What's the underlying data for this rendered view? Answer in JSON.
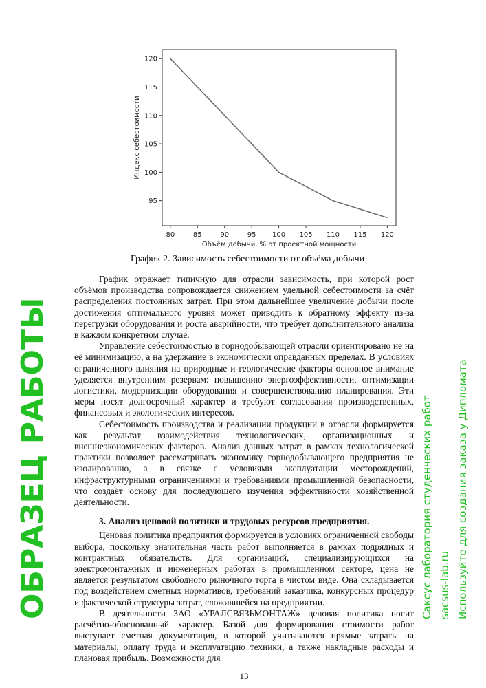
{
  "chart_data": {
    "type": "line",
    "title": "",
    "xlabel": "Объём добычи, % от проектной мощности",
    "ylabel": "Индекс себестоимости",
    "x": [
      80,
      85,
      90,
      95,
      100,
      110,
      120
    ],
    "series": [
      {
        "values": [
          120,
          115,
          110,
          105,
          100,
          95,
          92
        ],
        "color": "#666666"
      }
    ],
    "xticks": [
      80,
      85,
      90,
      95,
      100,
      105,
      110,
      115,
      120
    ],
    "yticks": [
      95,
      100,
      105,
      110,
      115,
      120
    ],
    "xlim": [
      78.5,
      121.6
    ],
    "ylim": [
      90.6,
      121.6
    ],
    "grid": false
  },
  "caption": "График 2. Зависимость себестоимости от объёма добычи",
  "paragraphs": [
    "График отражает типичную для отрасли зависимость, при которой рост объёмов производства сопровождается снижением удельной себестоимости за счёт распределения постоянных затрат. При этом дальнейшее увеличение добычи после достижения оптимального уровня может приводить к обратному эффекту из-за перегрузки оборудования и роста аварийности, что требует дополнительного анализа в каждом конкретном случае.",
    "Управление себестоимостью в горнодобывающей отрасли ориентировано не на её минимизацию, а на удержание в экономически оправданных пределах. В условиях ограниченного влияния на природные и геологические факторы основное внимание уделяется внутренним резервам: повышению энергоэффективности, оптимизации логистики, модернизации оборудования и совершенствованию планирования. Эти меры носят долгосрочный характер и требуют согласования производственных, финансовых и экологических интересов.",
    "Себестоимость производства и реализации продукции в отрасли формируется как результат взаимодействия технологических, организационных и внешнеэкономических факторов. Анализ данных затрат в рамках технологической практики позволяет рассматривать экономику горнодобывающего предприятия не изолированно, а в связке с условиями эксплуатации месторождений, инфраструктурными ограничениями и требованиями промышленной безопасности, что создаёт основу для последующего изучения эффективности хозяйственной деятельности."
  ],
  "heading": "3. Анализ ценовой политики и трудовых ресурсов предприятия.",
  "paragraphs2": [
    "Ценовая политика предприятия формируется в условиях ограниченной свободы выбора, поскольку значительная часть работ выполняется в рамках подрядных и контрактных обязательств. Для организаций, специализирующихся на электромонтажных и инженерных работах в промышленном секторе, цена не является результатом свободного рыночного торга в чистом виде. Она складывается под воздействием сметных нормативов, требований заказчика, конкурсных процедур и фактической структуры затрат, сложившейся на предприятии.",
    "В деятельности ЗАО «УРАЛСВЯЗЬМОНТАЖ» ценовая политика носит расчётно-обоснованный характер. Базой для формирования стоимости работ выступает сметная документация, в которой учитываются прямые затраты на материалы, оплату труда и эксплуатацию техники, а также накладные расходы и плановая прибыль. Возможности для"
  ],
  "page_number": "13",
  "watermark": {
    "main": "ОБРАЗЕЦ РАБОТЫ",
    "line1": "Саксус лаборатория студенческих работ",
    "line2": "sacsus-lab.ru",
    "line3": "Используйте для создания заказа у Дипломата",
    "color": "#22c022"
  }
}
